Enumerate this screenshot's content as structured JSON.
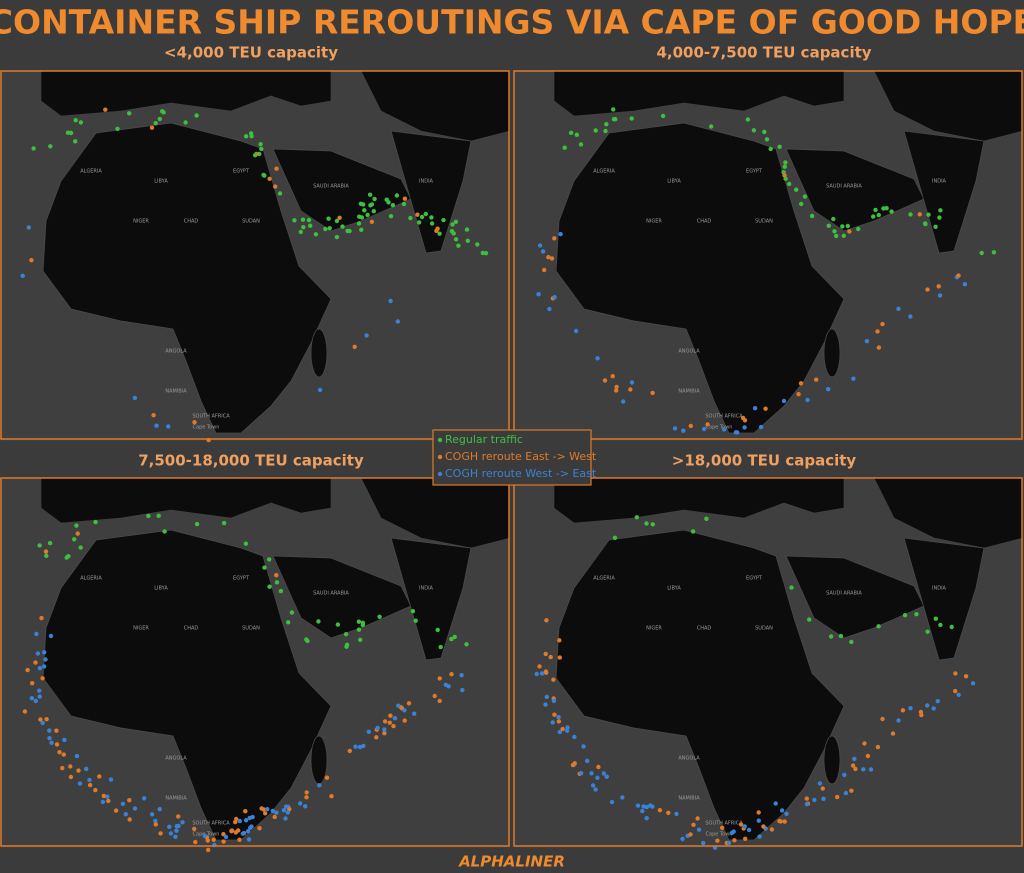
{
  "header": {
    "title": "CONTAINER SHIP REROUTINGS VIA CAPE OF GOOD HOPE"
  },
  "panels": [
    {
      "title": "<4,000 TEU capacity"
    },
    {
      "title": "4,000-7,500 TEU capacity"
    },
    {
      "title": "7,500-18,000 TEU capacity"
    },
    {
      "title": ">18,000 TEU capacity"
    }
  ],
  "legend": [
    {
      "name": "Regular traffic",
      "color": "#3fbf3f"
    },
    {
      "name": "COGH reroute East -> West",
      "color": "#e07a2a"
    },
    {
      "name": "COGH reroute West -> East",
      "color": "#3b82d6"
    }
  ],
  "map_labels": [
    "ALGERIA",
    "LIBYA",
    "EGYPT",
    "NIGER",
    "CHAD",
    "SUDAN",
    "ANGOLA",
    "NAMIBIA",
    "SOUTH AFRICA",
    "SAUDI ARABIA",
    "INDIA",
    "Cape Town"
  ],
  "footer": {
    "brand": "ALPHALINER"
  }
}
